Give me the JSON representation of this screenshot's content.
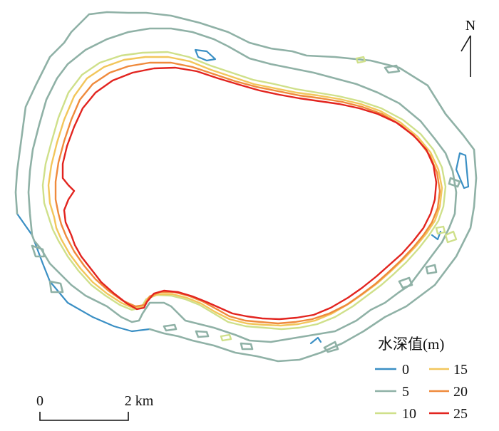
{
  "map": {
    "north_label": "N",
    "legend": {
      "title": "水深值(m)",
      "items": [
        {
          "value": "0",
          "color": "#3a8fc4"
        },
        {
          "value": "5",
          "color": "#8fb1a6"
        },
        {
          "value": "10",
          "color": "#cfe08a"
        },
        {
          "value": "15",
          "color": "#f2c65b"
        },
        {
          "value": "20",
          "color": "#ef8a3c"
        },
        {
          "value": "25",
          "color": "#e2241f"
        }
      ]
    },
    "scale_bar": {
      "start_label": "0",
      "end_label": "2 km"
    }
  }
}
